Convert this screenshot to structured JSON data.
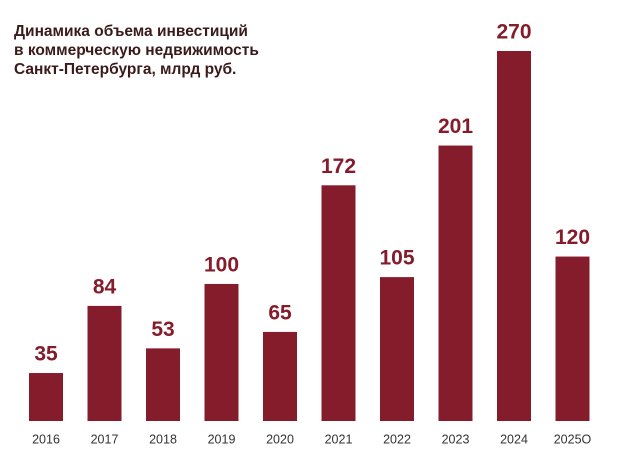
{
  "chart_data": {
    "type": "bar",
    "title": [
      "Динамика объема инвестиций",
      "в коммерческую недвижимость",
      "Санкт-Петербурга, млрд руб."
    ],
    "categories": [
      "2016",
      "2017",
      "2018",
      "2019",
      "2020",
      "2021",
      "2022",
      "2023",
      "2024",
      "2025O"
    ],
    "values": [
      35,
      84,
      53,
      100,
      65,
      172,
      105,
      201,
      270,
      120
    ],
    "color": "#841c2b"
  }
}
